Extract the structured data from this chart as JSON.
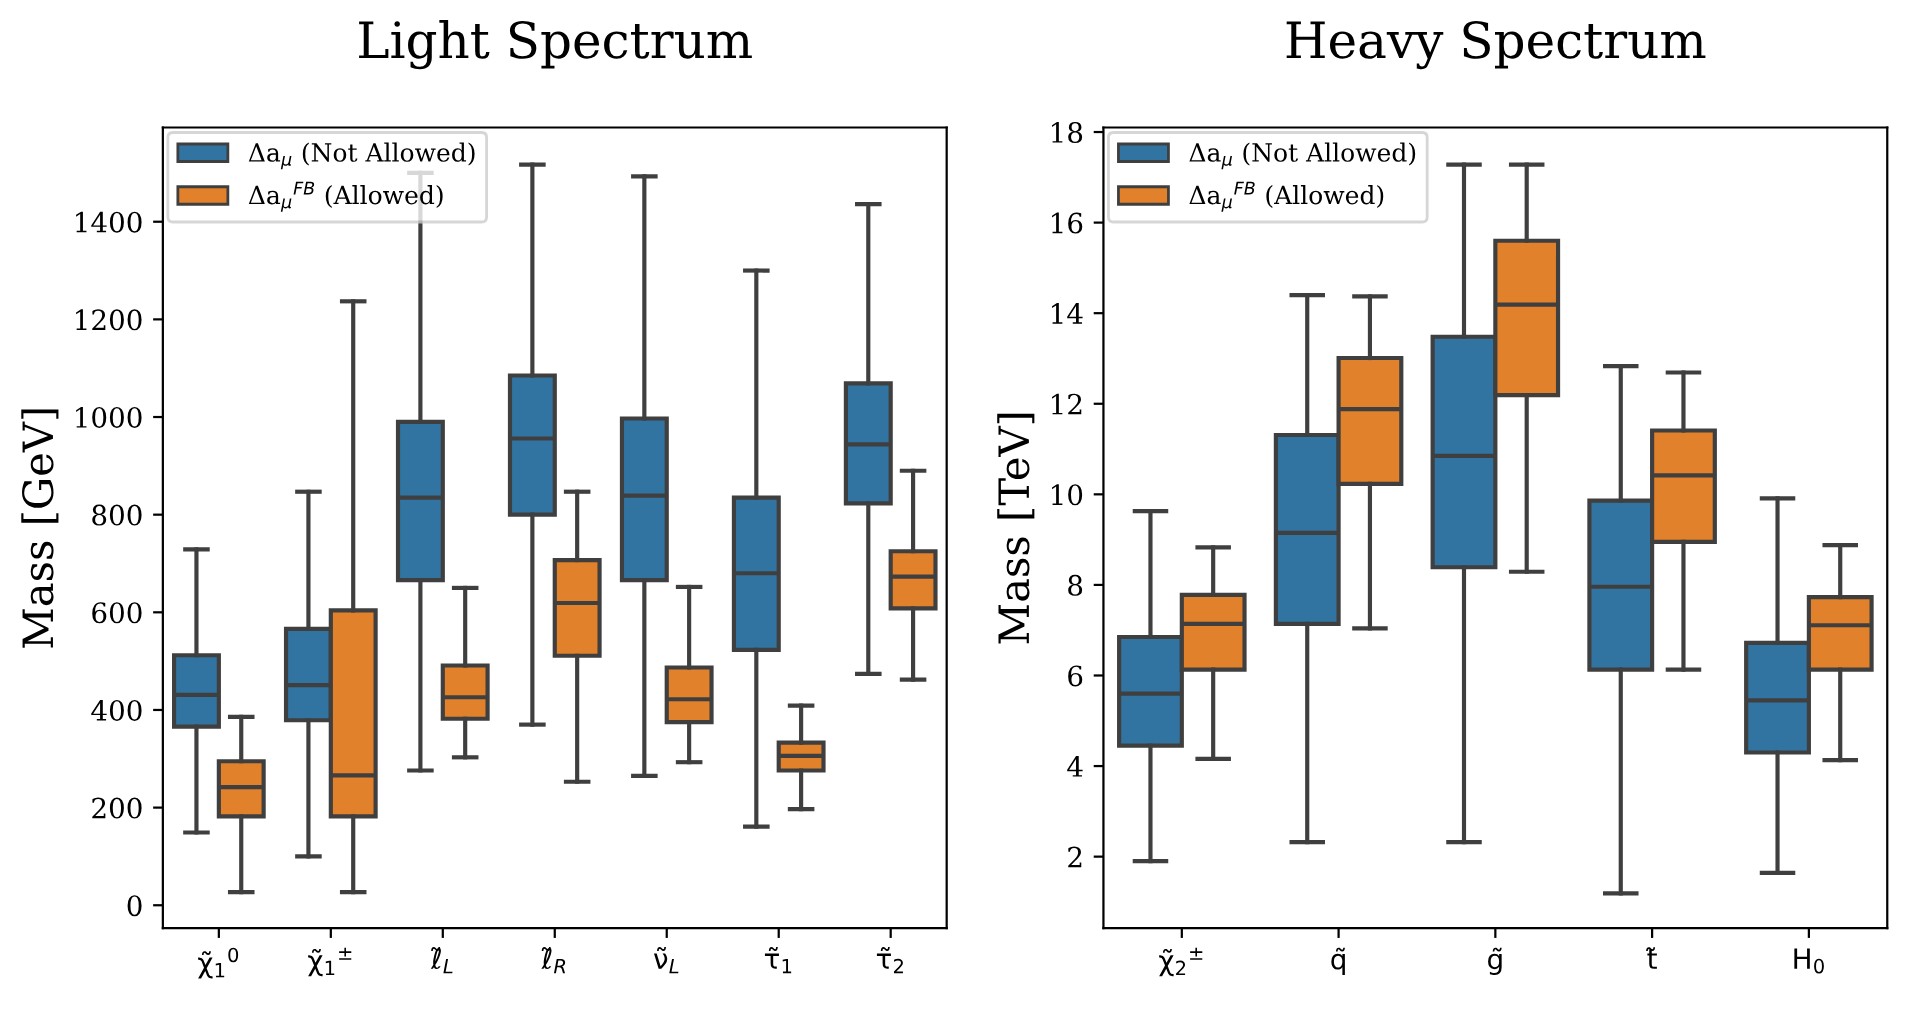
{
  "chart_data": [
    {
      "type": "box",
      "title": "Light Spectrum",
      "ylabel": "Mass [GeV]",
      "categories": [
        "χ̃$_{1}$$^{0}$",
        "χ̃$_{1}$$^{±}$",
        "ℓ̃$_{L}$",
        "ℓ̃$_{R}$",
        "ν̃$_{L}$",
        "τ̃$_{1}$",
        "τ̃$_{2}$"
      ],
      "ylim": [
        -47,
        1593
      ],
      "yticks": [
        0,
        200,
        400,
        600,
        800,
        1000,
        1200,
        1400
      ],
      "grid": false,
      "legend": "top left",
      "series": [
        {
          "name": "Δa$_{μ}$ (Not Allowed)",
          "color": "#3274a1",
          "boxes": [
            {
              "low": 149,
              "q1": 366,
              "median": 431,
              "q3": 512,
              "high": 729
            },
            {
              "low": 100,
              "q1": 379,
              "median": 451,
              "q3": 566,
              "high": 847
            },
            {
              "low": 276,
              "q1": 666,
              "median": 835,
              "q3": 990,
              "high": 1500
            },
            {
              "low": 370,
              "q1": 800,
              "median": 956,
              "q3": 1085,
              "high": 1517
            },
            {
              "low": 265,
              "q1": 666,
              "median": 839,
              "q3": 997,
              "high": 1493
            },
            {
              "low": 161,
              "q1": 523,
              "median": 680,
              "q3": 835,
              "high": 1300
            },
            {
              "low": 474,
              "q1": 823,
              "median": 944,
              "q3": 1069,
              "high": 1436
            }
          ]
        },
        {
          "name": "Δa$_{μ}$$^{FB}$ (Allowed)",
          "color": "#e1812c",
          "boxes": [
            {
              "low": 27,
              "q1": 182,
              "median": 242,
              "q3": 295,
              "high": 386
            },
            {
              "low": 27,
              "q1": 182,
              "median": 266,
              "q3": 604,
              "high": 1237
            },
            {
              "low": 303,
              "q1": 382,
              "median": 426,
              "q3": 491,
              "high": 650
            },
            {
              "low": 253,
              "q1": 511,
              "median": 619,
              "q3": 707,
              "high": 847
            },
            {
              "low": 293,
              "q1": 375,
              "median": 422,
              "q3": 487,
              "high": 652
            },
            {
              "low": 197,
              "q1": 276,
              "median": 306,
              "q3": 333,
              "high": 409
            },
            {
              "low": 462,
              "q1": 608,
              "median": 673,
              "q3": 725,
              "high": 890
            }
          ]
        }
      ]
    },
    {
      "type": "box",
      "title": "Heavy Spectrum",
      "ylabel": "Mass [TeV]",
      "categories": [
        "χ̃$_{2}$$^{±}$",
        "q̃",
        "g̃",
        "t̃",
        "H$_{0}$"
      ],
      "ylim": [
        0.42,
        18.1
      ],
      "yticks": [
        2,
        4,
        6,
        8,
        10,
        12,
        14,
        16,
        18
      ],
      "grid": false,
      "legend": "top left",
      "series": [
        {
          "name": "Δa$_{μ}$ (Not Allowed)",
          "color": "#3274a1",
          "boxes": [
            {
              "low": 1.9,
              "q1": 4.45,
              "median": 5.6,
              "q3": 6.85,
              "high": 9.63
            },
            {
              "low": 2.32,
              "q1": 7.14,
              "median": 9.15,
              "q3": 11.31,
              "high": 14.4
            },
            {
              "low": 2.32,
              "q1": 8.39,
              "median": 10.85,
              "q3": 13.48,
              "high": 17.28
            },
            {
              "low": 1.19,
              "q1": 6.13,
              "median": 7.96,
              "q3": 9.86,
              "high": 12.83
            },
            {
              "low": 1.64,
              "q1": 4.3,
              "median": 5.45,
              "q3": 6.72,
              "high": 9.91
            }
          ]
        },
        {
          "name": "Δa$_{μ}$$^{FB}$ (Allowed)",
          "color": "#e1812c",
          "boxes": [
            {
              "low": 4.16,
              "q1": 6.13,
              "median": 7.14,
              "q3": 7.78,
              "high": 8.83
            },
            {
              "low": 7.04,
              "q1": 10.23,
              "median": 11.88,
              "q3": 13.01,
              "high": 14.37
            },
            {
              "low": 8.29,
              "q1": 12.19,
              "median": 14.19,
              "q3": 15.6,
              "high": 17.28
            },
            {
              "low": 6.13,
              "q1": 8.95,
              "median": 10.42,
              "q3": 11.41,
              "high": 12.69
            },
            {
              "low": 4.13,
              "q1": 6.13,
              "median": 7.11,
              "q3": 7.73,
              "high": 8.88
            }
          ]
        }
      ]
    }
  ]
}
